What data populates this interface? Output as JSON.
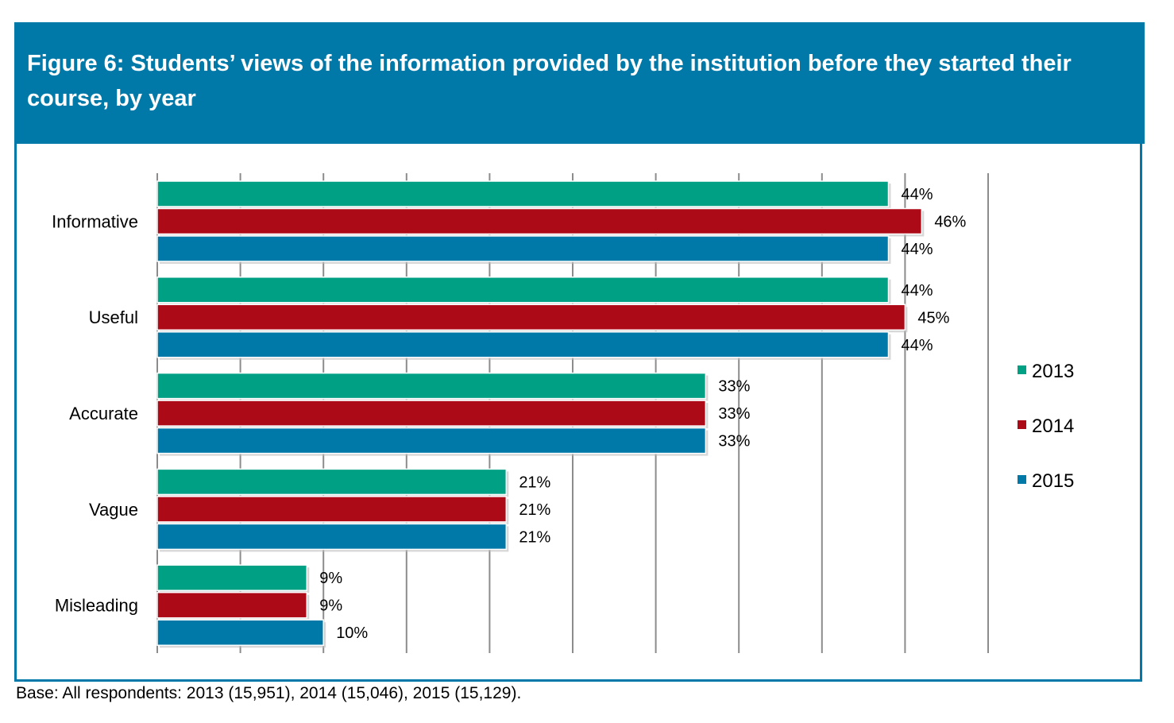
{
  "chart_data": {
    "type": "bar",
    "orientation": "horizontal",
    "title": "Figure 6: Students’ views of the information provided by the institution before they started their course, by year",
    "categories": [
      "Informative",
      "Useful",
      "Accurate",
      "Vague",
      "Misleading"
    ],
    "series": [
      {
        "name": "2013",
        "color": "#00a085",
        "values": [
          44,
          44,
          33,
          21,
          9
        ]
      },
      {
        "name": "2014",
        "color": "#ad0a17",
        "values": [
          46,
          45,
          33,
          21,
          9
        ]
      },
      {
        "name": "2015",
        "color": "#0079a8",
        "values": [
          44,
          44,
          33,
          21,
          10
        ]
      }
    ],
    "value_suffix": "%",
    "xlim": [
      0,
      50
    ],
    "x_gridline_step": 5,
    "grid": true,
    "xlabel": "",
    "ylabel": "",
    "legend_position": "right",
    "footnote": "Base: All respondents: 2013 (15,951), 2014 (15,046), 2015 (15,129)."
  }
}
